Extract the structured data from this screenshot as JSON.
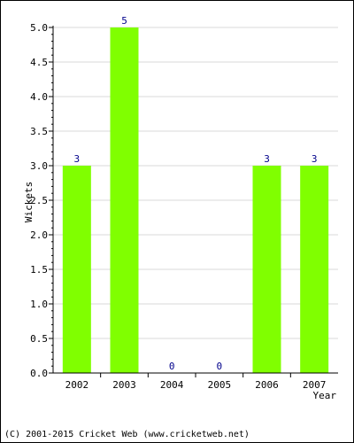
{
  "chart_data": {
    "type": "bar",
    "categories": [
      "2002",
      "2003",
      "2004",
      "2005",
      "2006",
      "2007"
    ],
    "values": [
      3,
      5,
      0,
      0,
      3,
      3
    ],
    "data_labels": [
      "3",
      "5",
      "0",
      "0",
      "3",
      "3"
    ],
    "xlabel": "Year",
    "ylabel": "Wickets",
    "ylim": [
      0,
      5
    ],
    "yticks": [
      "0.0",
      "0.5",
      "1.0",
      "1.5",
      "2.0",
      "2.5",
      "3.0",
      "3.5",
      "4.0",
      "4.5",
      "5.0"
    ],
    "grid": true,
    "bar_color": "#80ff00",
    "grid_color": "#d8d8d8",
    "label_color": "#00008b"
  },
  "footer": {
    "copyright": "(C) 2001-2015 Cricket Web (www.cricketweb.net)"
  }
}
